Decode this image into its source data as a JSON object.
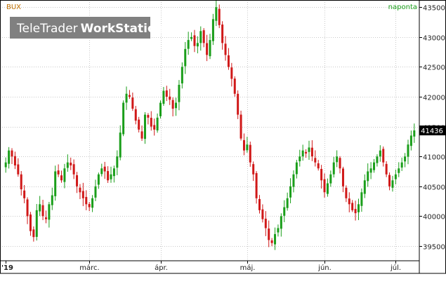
{
  "chart_data": {
    "type": "candlestick",
    "title": "BUX",
    "period_label": "naponta",
    "last_price": "41436",
    "watermark": {
      "brand": "TeleTrader",
      "product": "WorkStation"
    },
    "y_ticks": [
      39500,
      40000,
      40500,
      41000,
      41500,
      42000,
      42500,
      43000,
      43500
    ],
    "y_tick_labels": [
      "39500",
      "40000",
      "40500",
      "41000",
      "41500",
      "42000",
      "42500",
      "43000",
      "43500"
    ],
    "ylim": [
      39300,
      43550
    ],
    "x_labels": [
      {
        "label": "'19",
        "index": 0
      },
      {
        "label": "márc.",
        "index": 27
      },
      {
        "label": "ápr.",
        "index": 50
      },
      {
        "label": "máj.",
        "index": 78
      },
      {
        "label": "jún.",
        "index": 103
      },
      {
        "label": "júl.",
        "index": 126
      }
    ],
    "grid": true,
    "colors": {
      "up": "#1a9e1a",
      "down": "#d01818",
      "grid": "#c8c8c8",
      "last_price_bg": "#000000"
    },
    "closes": [
      40900,
      41100,
      41000,
      40850,
      40700,
      40450,
      40300,
      40000,
      39750,
      39650,
      40100,
      40200,
      40000,
      39950,
      40200,
      40350,
      40750,
      40700,
      40600,
      40800,
      40900,
      40850,
      40700,
      40500,
      40400,
      40300,
      40200,
      40150,
      40300,
      40500,
      40700,
      40800,
      40750,
      40600,
      40700,
      40800,
      41000,
      41400,
      41900,
      42050,
      42000,
      41800,
      41600,
      41450,
      41300,
      41700,
      41650,
      41500,
      41450,
      41650,
      41900,
      42100,
      42000,
      41950,
      41800,
      41900,
      42200,
      42500,
      42800,
      42950,
      43000,
      42850,
      42900,
      43100,
      42900,
      42700,
      42950,
      43300,
      43500,
      43200,
      42900,
      42700,
      42500,
      42300,
      42050,
      41700,
      41300,
      41100,
      41200,
      40900,
      40700,
      40300,
      40100,
      39950,
      39800,
      39600,
      39550,
      39700,
      39800,
      40000,
      40150,
      40300,
      40500,
      40700,
      40900,
      41000,
      41100,
      41050,
      41150,
      41000,
      40900,
      40800,
      40600,
      40400,
      40550,
      40700,
      40900,
      41000,
      40800,
      40500,
      40300,
      40200,
      40100,
      40050,
      40200,
      40400,
      40600,
      40750,
      40800,
      40900,
      41000,
      41100,
      40900,
      40700,
      40500,
      40600,
      40700,
      40800,
      40900,
      41000,
      41200,
      41350,
      41436
    ]
  }
}
